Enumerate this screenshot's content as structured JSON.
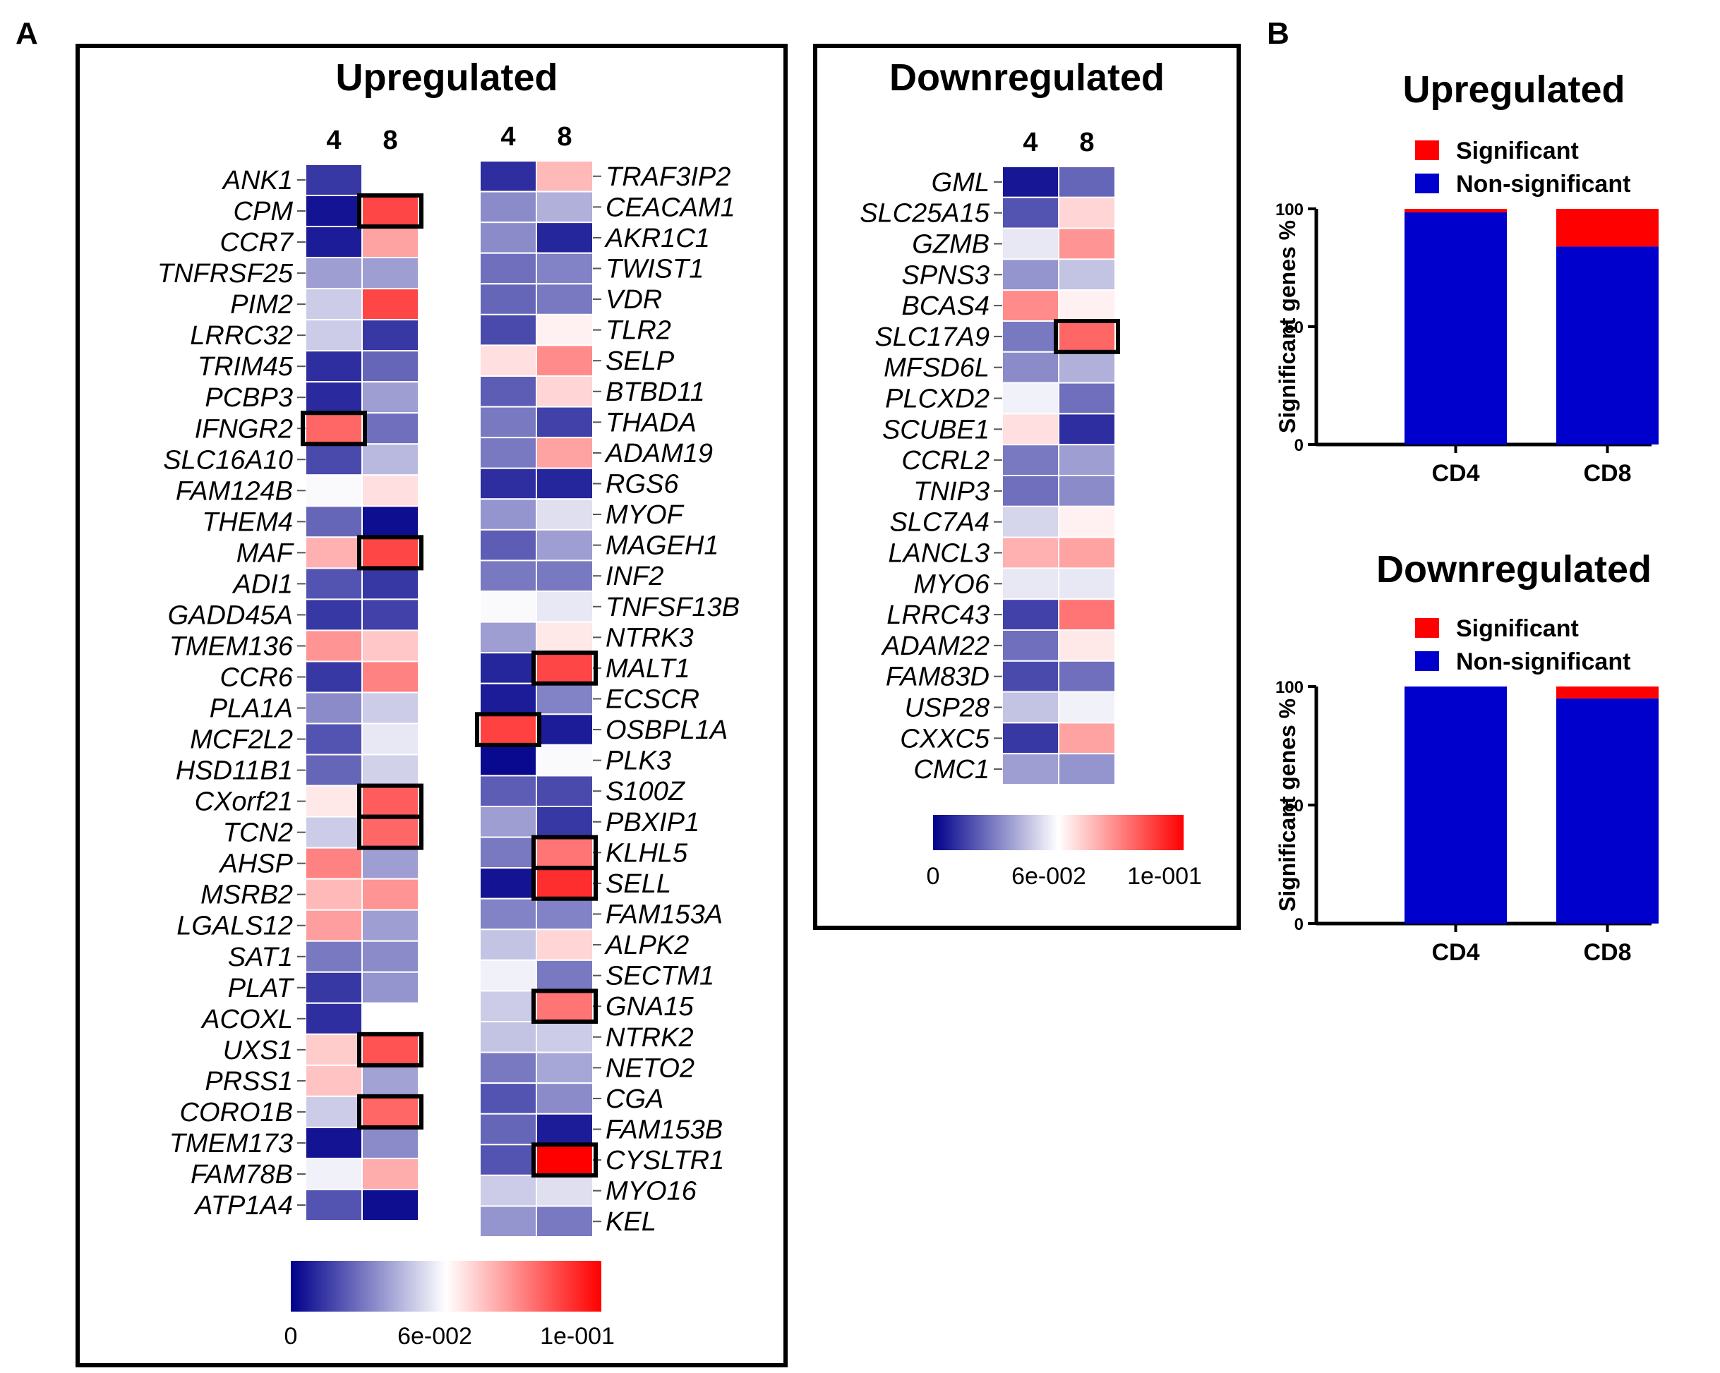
{
  "panel_labels": {
    "a": "A",
    "b": "B"
  },
  "colorbar": {
    "stops": [
      "#00008B",
      "#ffffff",
      "#ff0000"
    ],
    "tick_values": [
      0,
      0.06,
      0.1
    ],
    "tick_labels": [
      "0",
      "6e-002",
      "1e-001"
    ],
    "vmin": 0,
    "vmax": 0.11
  },
  "chart_data": [
    {
      "type": "heatmap",
      "title": "Upregulated",
      "columns": [
        "4",
        "8"
      ],
      "blocks": [
        {
          "rows": [
            "ANK1",
            "CPM",
            "CCR7",
            "TNFRSF25",
            "PIM2",
            "LRRC32",
            "TRIM45",
            "PCBP3",
            "IFNGR2",
            "SLC16A10",
            "FAM124B",
            "THEM4",
            "MAF",
            "ADI1",
            "GADD45A",
            "TMEM136",
            "CCR6",
            "PLA1A",
            "MCF2L2",
            "HSD11B1",
            "CXorf21",
            "TCN2",
            "AHSP",
            "MSRB2",
            "LGALS12",
            "SAT1",
            "PLAT",
            "ACOXL",
            "UXS1",
            "PRSS1",
            "CORO1B",
            "TMEM173",
            "FAM78B",
            "ATP1A4"
          ],
          "values": [
            [
              0.012,
              0.055
            ],
            [
              0.004,
              0.095
            ],
            [
              0.006,
              0.075
            ],
            [
              0.034,
              0.034
            ],
            [
              0.044,
              0.095
            ],
            [
              0.044,
              0.012
            ],
            [
              0.01,
              0.022
            ],
            [
              0.009,
              0.034
            ],
            [
              0.088,
              0.024
            ],
            [
              0.016,
              0.04
            ],
            [
              0.054,
              0.062
            ],
            [
              0.022,
              0.003
            ],
            [
              0.072,
              0.095
            ],
            [
              0.018,
              0.012
            ],
            [
              0.012,
              0.014
            ],
            [
              0.078,
              0.067
            ],
            [
              0.012,
              0.082
            ],
            [
              0.03,
              0.044
            ],
            [
              0.018,
              0.05
            ],
            [
              0.022,
              0.045
            ],
            [
              0.06,
              0.09
            ],
            [
              0.044,
              0.088
            ],
            [
              0.082,
              0.034
            ],
            [
              0.07,
              0.078
            ],
            [
              0.076,
              0.034
            ],
            [
              0.026,
              0.03
            ],
            [
              0.012,
              0.032
            ],
            [
              0.01,
              0.055
            ],
            [
              0.066,
              0.092
            ],
            [
              0.068,
              0.035
            ],
            [
              0.044,
              0.088
            ],
            [
              0.004,
              0.03
            ],
            [
              0.052,
              0.073
            ],
            [
              0.018,
              0.003
            ]
          ],
          "significant": [
            [
              1,
              1
            ],
            [
              8,
              0
            ],
            [
              12,
              1
            ],
            [
              20,
              1
            ],
            [
              21,
              1
            ],
            [
              28,
              1
            ],
            [
              30,
              1
            ]
          ]
        },
        {
          "rows": [
            "TRAF3IP2",
            "CEACAM1",
            "AKR1C1",
            "TWIST1",
            "VDR",
            "TLR2",
            "SELP",
            "BTBD11",
            "THADA",
            "ADAM19",
            "RGS6",
            "MYOF",
            "MAGEH1",
            "INF2",
            "TNFSF13B",
            "NTRK3",
            "MALT1",
            "ECSCR",
            "OSBPL1A",
            "PLK3",
            "S100Z",
            "PBXIP1",
            "KLHL5",
            "SELL",
            "FAM153A",
            "ALPK2",
            "SECTM1",
            "GNA15",
            "NTRK2",
            "NETO2",
            "CGA",
            "FAM153B",
            "CYSLTR1",
            "MYO16",
            "KEL"
          ],
          "values": [
            [
              0.01,
              0.07
            ],
            [
              0.03,
              0.038
            ],
            [
              0.03,
              0.008
            ],
            [
              0.024,
              0.028
            ],
            [
              0.022,
              0.026
            ],
            [
              0.016,
              0.058
            ],
            [
              0.062,
              0.08
            ],
            [
              0.02,
              0.064
            ],
            [
              0.026,
              0.014
            ],
            [
              0.026,
              0.075
            ],
            [
              0.01,
              0.008
            ],
            [
              0.032,
              0.048
            ],
            [
              0.02,
              0.034
            ],
            [
              0.026,
              0.026
            ],
            [
              0.054,
              0.05
            ],
            [
              0.034,
              0.06
            ],
            [
              0.008,
              0.095
            ],
            [
              0.006,
              0.028
            ],
            [
              0.096,
              0.006
            ],
            [
              0.002,
              0.054
            ],
            [
              0.02,
              0.016
            ],
            [
              0.034,
              0.012
            ],
            [
              0.026,
              0.085
            ],
            [
              0.004,
              0.1
            ],
            [
              0.028,
              0.028
            ],
            [
              0.042,
              0.064
            ],
            [
              0.052,
              0.026
            ],
            [
              0.044,
              0.085
            ],
            [
              0.042,
              0.044
            ],
            [
              0.026,
              0.036
            ],
            [
              0.018,
              0.03
            ],
            [
              0.022,
              0.006
            ],
            [
              0.018,
              0.11
            ],
            [
              0.044,
              0.048
            ],
            [
              0.032,
              0.026
            ]
          ],
          "significant": [
            [
              16,
              1
            ],
            [
              18,
              0
            ],
            [
              22,
              1
            ],
            [
              23,
              1
            ],
            [
              27,
              1
            ],
            [
              32,
              1
            ]
          ]
        }
      ]
    },
    {
      "type": "heatmap",
      "title": "Downregulated",
      "columns": [
        "4",
        "8"
      ],
      "blocks": [
        {
          "rows": [
            "GML",
            "SLC25A15",
            "GZMB",
            "SPNS3",
            "BCAS4",
            "SLC17A9",
            "MFSD6L",
            "PLCXD2",
            "SCUBE1",
            "CCRL2",
            "TNIP3",
            "SLC7A4",
            "LANCL3",
            "MYO6",
            "LRRC43",
            "ADAM22",
            "FAM83D",
            "USP28",
            "CXXC5",
            "CMC1"
          ],
          "values": [
            [
              0.005,
              0.022
            ],
            [
              0.018,
              0.064
            ],
            [
              0.05,
              0.078
            ],
            [
              0.032,
              0.042
            ],
            [
              0.08,
              0.058
            ],
            [
              0.026,
              0.088
            ],
            [
              0.03,
              0.038
            ],
            [
              0.052,
              0.024
            ],
            [
              0.062,
              0.01
            ],
            [
              0.026,
              0.034
            ],
            [
              0.024,
              0.03
            ],
            [
              0.046,
              0.058
            ],
            [
              0.072,
              0.075
            ],
            [
              0.05,
              0.05
            ],
            [
              0.014,
              0.085
            ],
            [
              0.024,
              0.06
            ],
            [
              0.016,
              0.024
            ],
            [
              0.042,
              0.052
            ],
            [
              0.012,
              0.075
            ],
            [
              0.034,
              0.032
            ]
          ],
          "significant": [
            [
              5,
              1
            ]
          ]
        }
      ]
    },
    {
      "type": "bar",
      "stacked": true,
      "title": "Upregulated",
      "categories": [
        "CD4",
        "CD8"
      ],
      "ylabel": "Significant genes %",
      "ylim": [
        0,
        100
      ],
      "yticks": [
        "0",
        "50",
        "100"
      ],
      "series": [
        {
          "name": "Non-significant",
          "color": "#0000cc",
          "values": [
            98.5,
            84
          ]
        },
        {
          "name": "Significant",
          "color": "#ff0000",
          "values": [
            1.5,
            16
          ]
        }
      ],
      "legend_position": "top"
    },
    {
      "type": "bar",
      "stacked": true,
      "title": "Downregulated",
      "categories": [
        "CD4",
        "CD8"
      ],
      "ylabel": "Significant genes %",
      "ylim": [
        0,
        100
      ],
      "yticks": [
        "0",
        "50",
        "100"
      ],
      "series": [
        {
          "name": "Non-significant",
          "color": "#0000cc",
          "values": [
            100,
            95
          ]
        },
        {
          "name": "Significant",
          "color": "#ff0000",
          "values": [
            0,
            5
          ]
        }
      ],
      "legend_position": "top"
    }
  ]
}
